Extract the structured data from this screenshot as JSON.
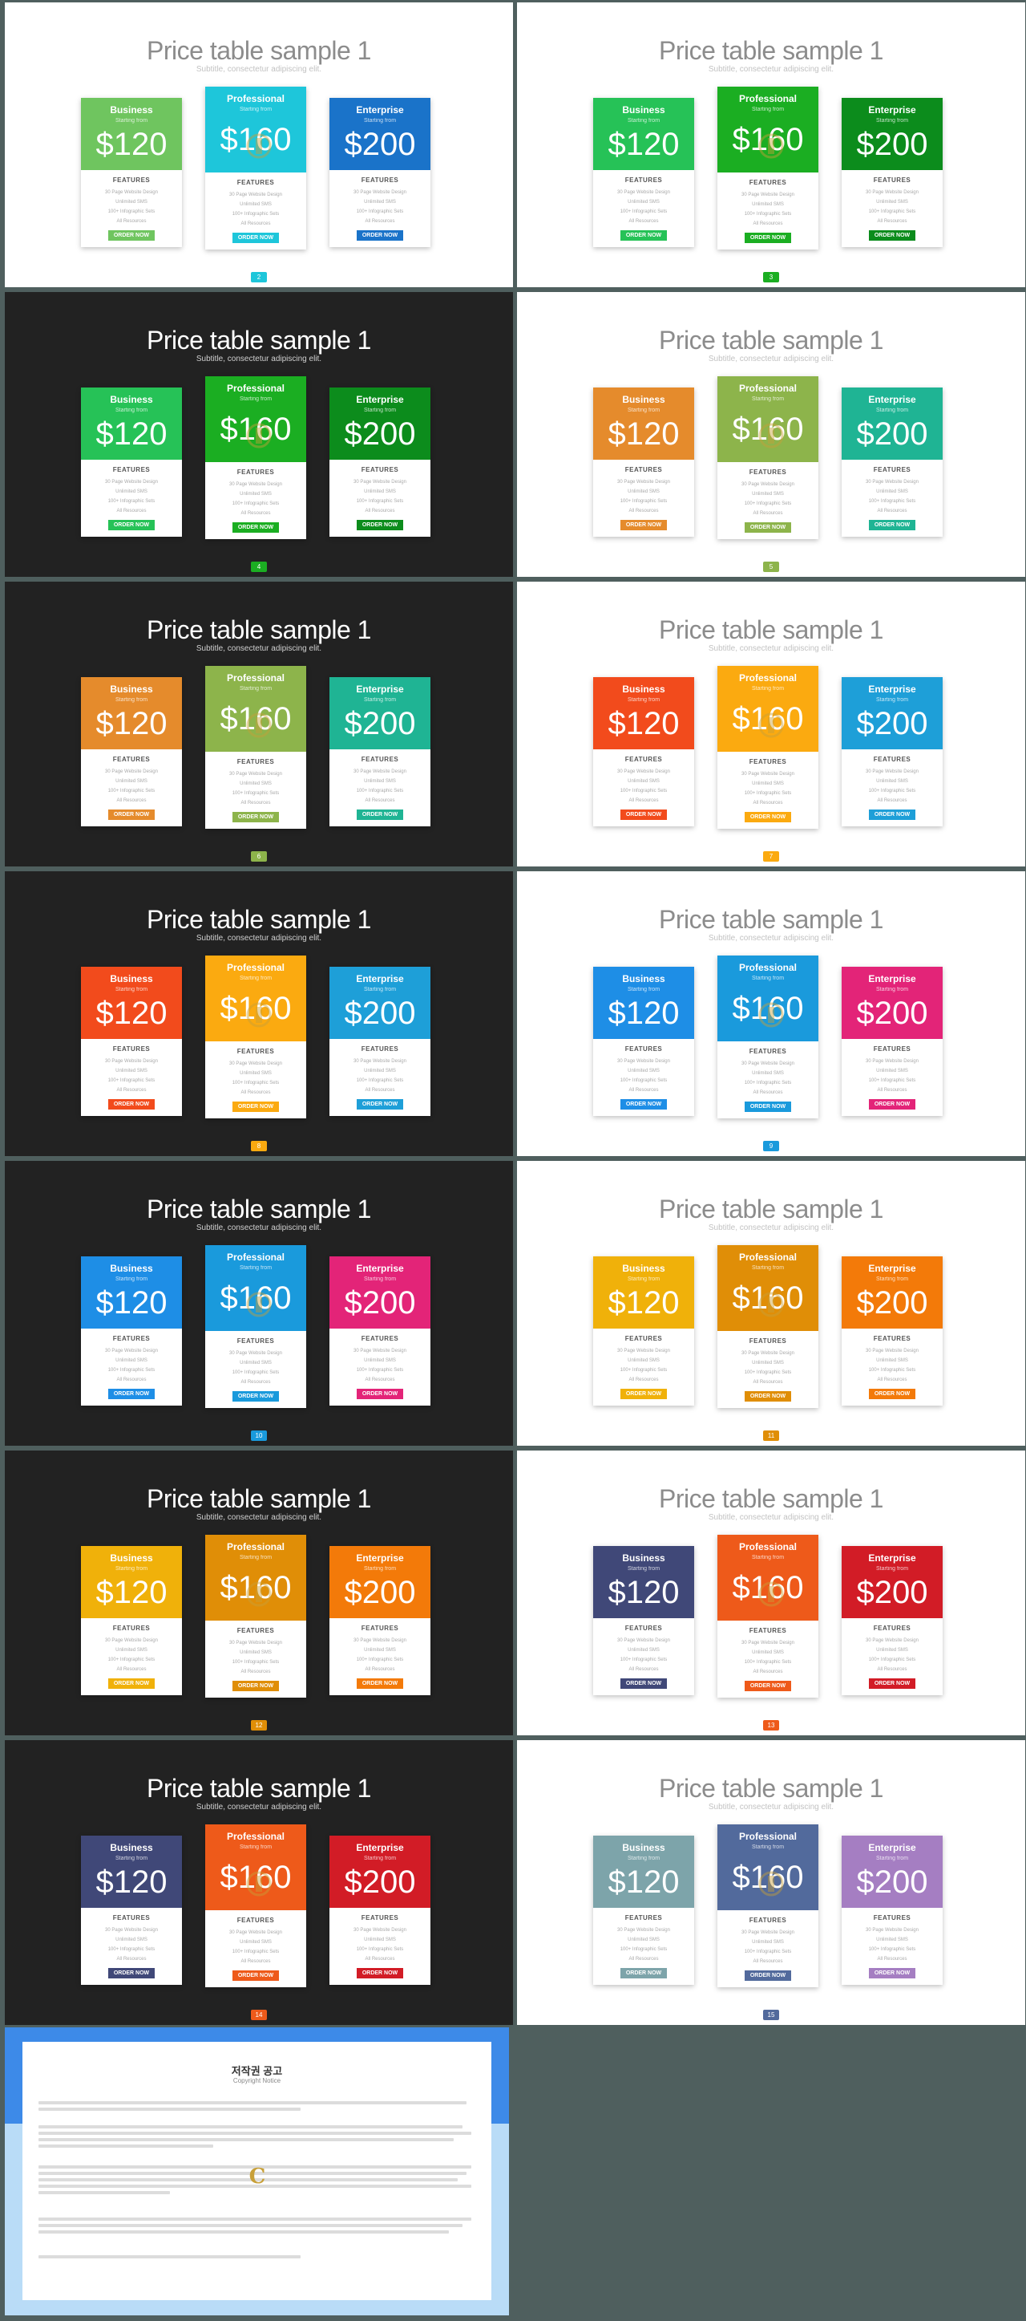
{
  "deck": {
    "title": "Price table sample 1",
    "subtitle": "Subtitle, consectetur adipiscing elit.",
    "plans": [
      {
        "name": "Business",
        "price": "$120"
      },
      {
        "name": "Professional",
        "price": "$160"
      },
      {
        "name": "Enterprise",
        "price": "$200"
      }
    ],
    "starting_label": "Starting from",
    "features_heading": "FEATURES",
    "features": [
      "30 Page Website Design",
      "Unlimited SMS",
      "100+ Infographic Sets",
      "All Resources"
    ],
    "order_label": "ORDER NOW"
  },
  "slides": [
    {
      "theme": "light",
      "page": "2",
      "colors": [
        "#6fc55f",
        "#1ec6da",
        "#1a73c9"
      ]
    },
    {
      "theme": "light",
      "page": "3",
      "colors": [
        "#26c257",
        "#1bae22",
        "#0c8c1c"
      ]
    },
    {
      "theme": "dark",
      "page": "4",
      "colors": [
        "#26c257",
        "#1bae22",
        "#0c8c1c"
      ]
    },
    {
      "theme": "light",
      "page": "5",
      "colors": [
        "#e58b2c",
        "#8db44b",
        "#1fb494"
      ]
    },
    {
      "theme": "dark",
      "page": "6",
      "colors": [
        "#e58b2c",
        "#8db44b",
        "#1fb494"
      ]
    },
    {
      "theme": "light",
      "page": "7",
      "colors": [
        "#f24b1c",
        "#fbaa10",
        "#1e9fd8"
      ]
    },
    {
      "theme": "dark",
      "page": "8",
      "colors": [
        "#f24b1c",
        "#fbaa10",
        "#1e9fd8"
      ]
    },
    {
      "theme": "light",
      "page": "9",
      "colors": [
        "#1e8ee6",
        "#1a9adc",
        "#e32478"
      ]
    },
    {
      "theme": "dark",
      "page": "10",
      "colors": [
        "#1e8ee6",
        "#1a9adc",
        "#e32478"
      ]
    },
    {
      "theme": "light",
      "page": "11",
      "colors": [
        "#f0b10a",
        "#e08e07",
        "#f37a09"
      ]
    },
    {
      "theme": "dark",
      "page": "12",
      "colors": [
        "#f0b10a",
        "#e08e07",
        "#f37a09"
      ]
    },
    {
      "theme": "light",
      "page": "13",
      "colors": [
        "#404878",
        "#ee5a1a",
        "#d21c26"
      ]
    },
    {
      "theme": "dark",
      "page": "14",
      "colors": [
        "#404878",
        "#ee5a1a",
        "#d21c26"
      ]
    },
    {
      "theme": "light",
      "page": "15",
      "colors": [
        "#7da4aa",
        "#526a9c",
        "#a57ec2"
      ]
    }
  ],
  "copyright": {
    "title": "저작권 공고",
    "subtitle": "Copyright Notice",
    "logo": "C",
    "colors": {
      "band_top": "#3d8ae8",
      "band_bottom": "#b9dcf7"
    }
  }
}
